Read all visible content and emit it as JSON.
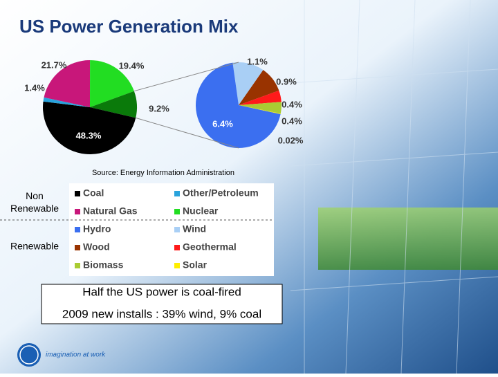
{
  "chart_data": {
    "type": "pie",
    "title": "US Power Generation Mix",
    "source": "Source: Energy Information Administration",
    "pies": [
      {
        "categories": [
          "Natural Gas",
          "Nuclear",
          null,
          "Coal",
          "Other/Petroleum"
        ],
        "values": [
          21.7,
          19.4,
          9.2,
          48.3,
          1.4
        ],
        "value_labels": [
          "21.7%",
          "19.4%",
          "9.2%",
          "48.3%",
          "1.4%"
        ],
        "colors": [
          "#c8177a",
          "#22dd22",
          "#0a7a0a",
          "#000000",
          "#29a3dc"
        ]
      },
      {
        "categories": [
          "Wind",
          "Wood",
          "Geothermal",
          "Biomass",
          "Solar",
          "Hydro"
        ],
        "values": [
          1.1,
          0.9,
          0.4,
          0.4,
          0.02,
          6.4
        ],
        "value_labels": [
          "1.1%",
          "0.9%",
          "0.4%",
          "0.4%",
          "0.02%",
          "6.4%"
        ],
        "colors": [
          "#a9cff5",
          "#993300",
          "#ff1a1a",
          "#aacc33",
          "#ffee00",
          "#3b6ff0"
        ]
      }
    ],
    "groups": [
      "Non Renewable",
      "Renewable"
    ],
    "notes": [
      "Half the US power is coal-fired",
      "2009 new installs :  39% wind, 9% coal"
    ],
    "footer": "imagination at work"
  }
}
